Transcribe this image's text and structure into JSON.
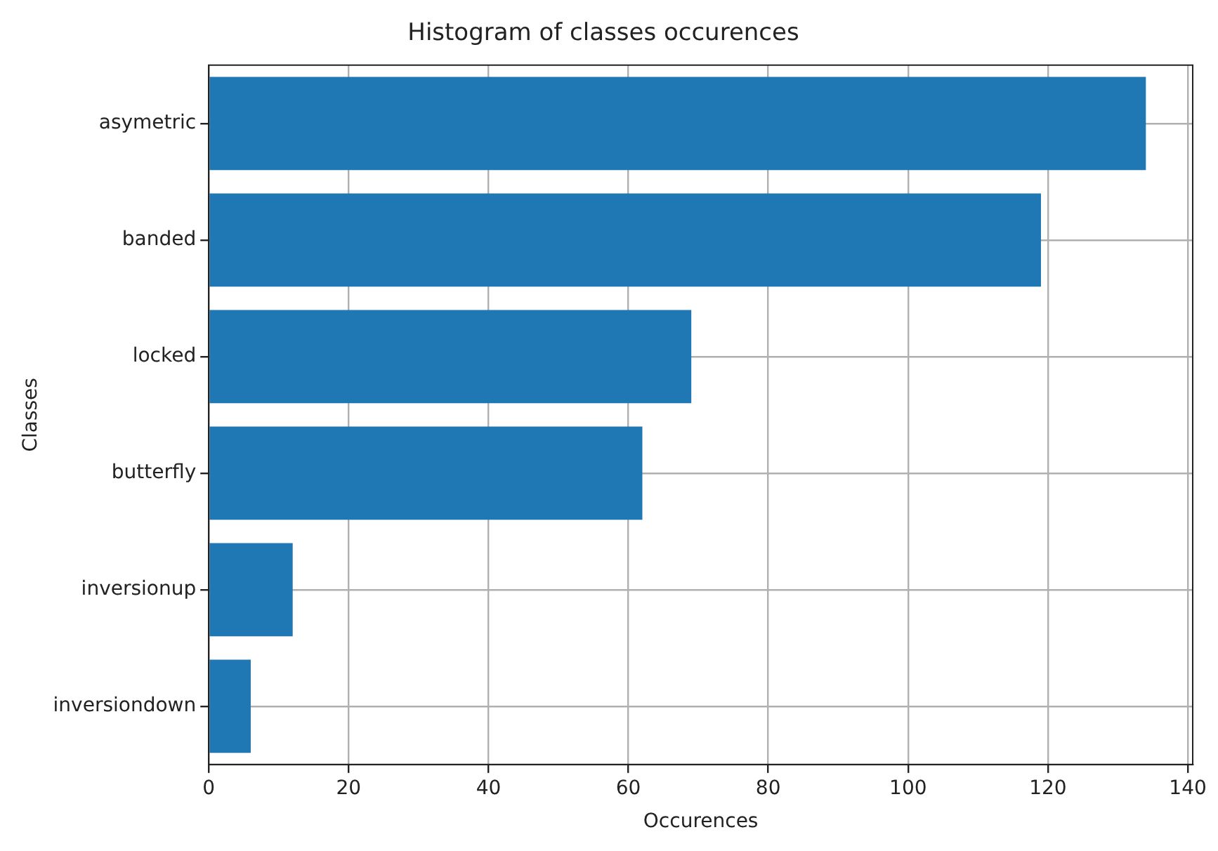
{
  "chart_data": {
    "type": "bar",
    "orientation": "horizontal",
    "title": "Histogram of classes occurences",
    "xlabel": "Occurences",
    "ylabel": "Classes",
    "categories": [
      "asymetric",
      "banded",
      "locked",
      "butterfly",
      "inversionup",
      "inversiondown"
    ],
    "values": [
      134,
      119,
      69,
      62,
      12,
      6
    ],
    "color": "#1f77b4",
    "xlim": [
      0,
      140.7
    ],
    "xticks": [
      0,
      20,
      40,
      60,
      80,
      100,
      120,
      140
    ],
    "grid": true,
    "legend": false
  }
}
